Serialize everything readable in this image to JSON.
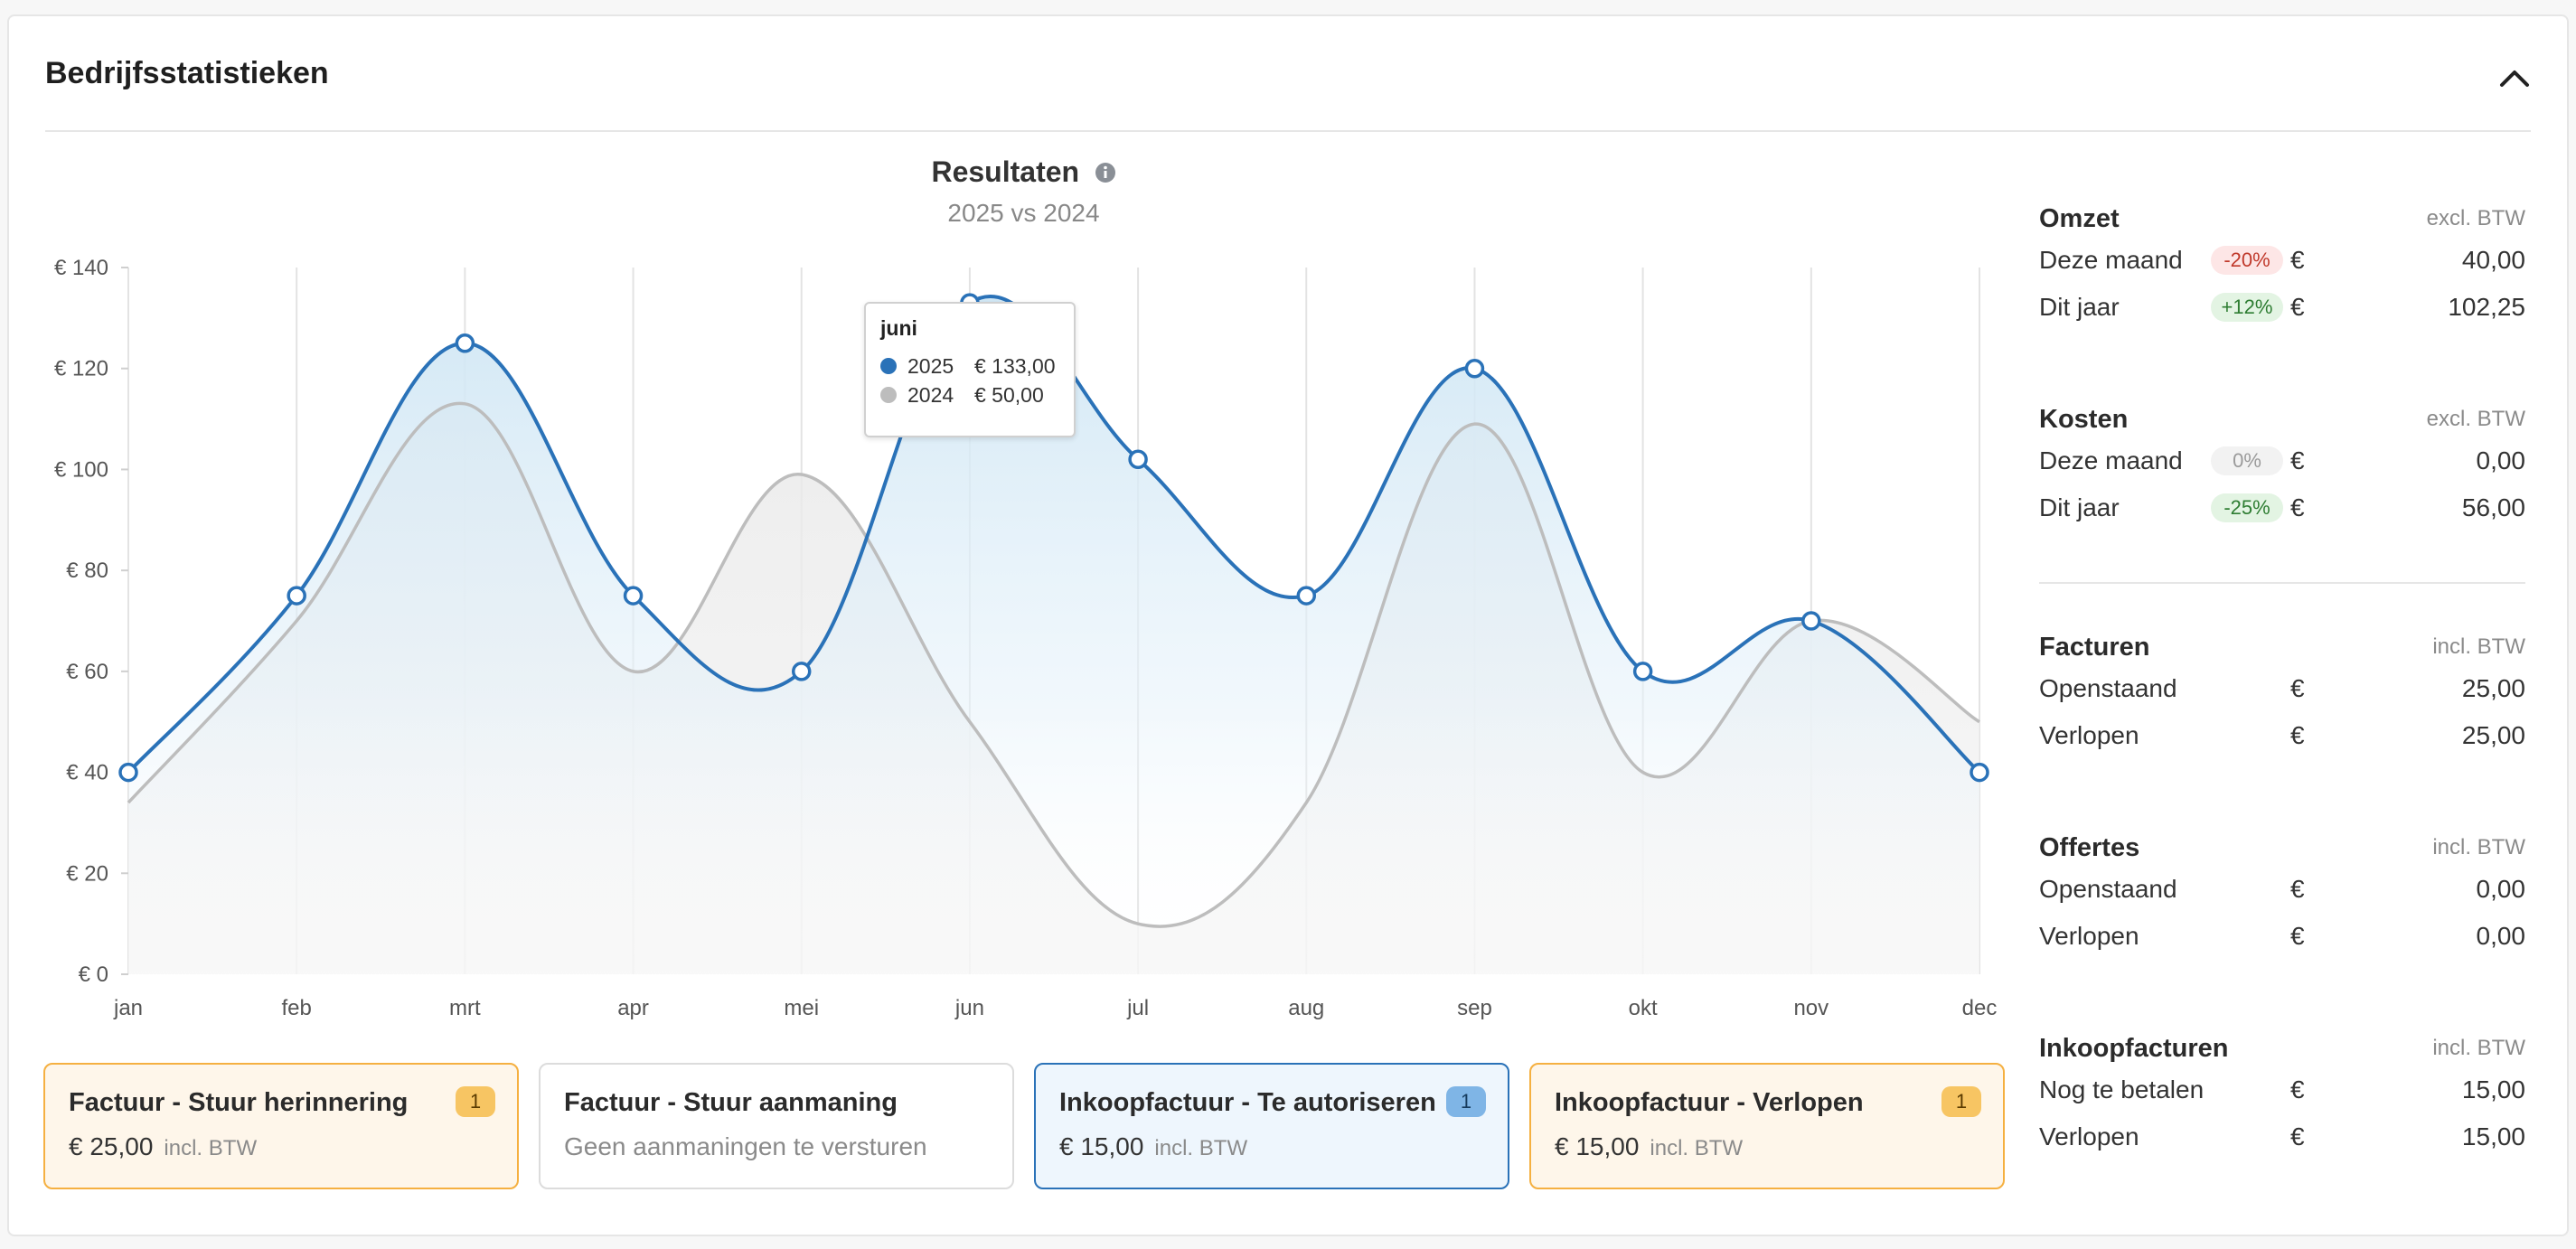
{
  "panel": {
    "title": "Bedrijfsstatistieken"
  },
  "chart": {
    "title": "Resultaten",
    "subtitle": "2025 vs 2024"
  },
  "tooltip": {
    "month": "juni",
    "rows": [
      {
        "series": "2025",
        "value": "€ 133,00",
        "color": "#2a72b8"
      },
      {
        "series": "2024",
        "value": "€ 50,00",
        "color": "#bdbdbd"
      }
    ]
  },
  "chart_data": {
    "type": "area",
    "title": "Resultaten",
    "subtitle": "2025 vs 2024",
    "categories": [
      "jan",
      "feb",
      "mrt",
      "apr",
      "mei",
      "jun",
      "jul",
      "aug",
      "sep",
      "okt",
      "nov",
      "dec"
    ],
    "y_tick_labels": [
      "€ 0",
      "€ 20",
      "€ 40",
      "€ 60",
      "€ 80",
      "€ 100",
      "€ 120",
      "€ 140"
    ],
    "ylim": [
      0,
      140
    ],
    "series": [
      {
        "name": "2025",
        "color": "#2a72b8",
        "values": [
          40,
          75,
          125,
          75,
          60,
          133,
          102,
          75,
          120,
          60,
          70,
          40
        ]
      },
      {
        "name": "2024",
        "color": "#bdbdbd",
        "values": [
          34,
          70,
          113,
          60,
          99,
          50,
          10,
          34,
          109,
          40,
          70,
          50
        ]
      }
    ],
    "grid": true
  },
  "cards": [
    {
      "title": "Factuur - Stuur herinnering",
      "amount": "€ 25,00",
      "note": "incl. BTW",
      "badge": "1"
    },
    {
      "title": "Factuur - Stuur aanmaning",
      "text": "Geen aanmaningen te versturen"
    },
    {
      "title": "Inkoopfactuur - Te autoriseren",
      "amount": "€ 15,00",
      "note": "incl. BTW",
      "badge": "1"
    },
    {
      "title": "Inkoopfactuur - Verlopen",
      "amount": "€ 15,00",
      "note": "incl. BTW",
      "badge": "1"
    }
  ],
  "stats": {
    "omzet": {
      "title": "Omzet",
      "note": "excl. BTW",
      "rows": [
        {
          "label": "Deze maand",
          "pill": "-20%",
          "currency": "€",
          "value": "40,00"
        },
        {
          "label": "Dit jaar",
          "pill": "+12%",
          "currency": "€",
          "value": "102,25"
        }
      ]
    },
    "kosten": {
      "title": "Kosten",
      "note": "excl. BTW",
      "rows": [
        {
          "label": "Deze maand",
          "pill": "0%",
          "currency": "€",
          "value": "0,00"
        },
        {
          "label": "Dit jaar",
          "pill": "-25%",
          "currency": "€",
          "value": "56,00"
        }
      ]
    },
    "facturen": {
      "title": "Facturen",
      "note": "incl. BTW",
      "rows": [
        {
          "label": "Openstaand",
          "currency": "€",
          "value": "25,00"
        },
        {
          "label": "Verlopen",
          "currency": "€",
          "value": "25,00"
        }
      ]
    },
    "offertes": {
      "title": "Offertes",
      "note": "incl. BTW",
      "rows": [
        {
          "label": "Openstaand",
          "currency": "€",
          "value": "0,00"
        },
        {
          "label": "Verlopen",
          "currency": "€",
          "value": "0,00"
        }
      ]
    },
    "inkoopfacturen": {
      "title": "Inkoopfacturen",
      "note": "incl. BTW",
      "rows": [
        {
          "label": "Nog te betalen",
          "currency": "€",
          "value": "15,00"
        },
        {
          "label": "Verlopen",
          "currency": "€",
          "value": "15,00"
        }
      ]
    }
  }
}
